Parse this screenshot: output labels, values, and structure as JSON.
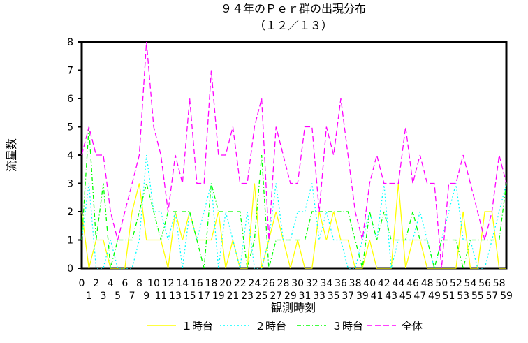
{
  "chart_data": {
    "type": "line",
    "title": "９４年のＰｅｒ群の出現分布",
    "subtitle": "（１２／１３）",
    "xlabel": "観測時刻",
    "ylabel": "流星数",
    "ylim": [
      0,
      8
    ],
    "xlim": [
      0,
      59
    ],
    "yticks": [
      0,
      1,
      2,
      3,
      4,
      5,
      6,
      7,
      8
    ],
    "xticks_top": [
      "0",
      "2",
      "4",
      "6",
      "8",
      "10",
      "12",
      "14",
      "16",
      "18",
      "20",
      "22",
      "24",
      "26",
      "28",
      "30",
      "32",
      "34",
      "36",
      "38",
      "40",
      "42",
      "44",
      "46",
      "48",
      "50",
      "52",
      "54",
      "56",
      "58"
    ],
    "xticks_bottom": [
      "1",
      "3",
      "5",
      "7",
      "9",
      "11",
      "13",
      "15",
      "17",
      "19",
      "21",
      "23",
      "25",
      "27",
      "29",
      "31",
      "33",
      "35",
      "37",
      "39",
      "41",
      "43",
      "45",
      "47",
      "49",
      "51",
      "53",
      "55",
      "57",
      "59"
    ],
    "grid": false,
    "legend_position": "bottom",
    "x": [
      0,
      1,
      2,
      3,
      4,
      5,
      6,
      7,
      8,
      9,
      10,
      11,
      12,
      13,
      14,
      15,
      16,
      17,
      18,
      19,
      20,
      21,
      22,
      23,
      24,
      25,
      26,
      27,
      28,
      29,
      30,
      31,
      32,
      33,
      34,
      35,
      36,
      37,
      38,
      39,
      40,
      41,
      42,
      43,
      44,
      45,
      46,
      47,
      48,
      49,
      50,
      51,
      52,
      53,
      54,
      55,
      56,
      57,
      58,
      59
    ],
    "series": [
      {
        "name": "１時台",
        "color": "#ffff00",
        "style": "solid",
        "values": [
          2,
          0,
          1,
          1,
          0,
          0,
          0,
          2,
          3,
          1,
          1,
          1,
          0,
          2,
          1,
          2,
          1,
          1,
          1,
          2,
          0,
          1,
          0,
          0,
          3,
          0,
          1,
          2,
          1,
          0,
          1,
          0,
          0,
          2,
          1,
          2,
          1,
          1,
          0,
          0,
          1,
          0,
          0,
          0,
          3,
          0,
          1,
          1,
          0,
          0,
          0,
          0,
          0,
          2,
          0,
          0,
          2,
          2,
          0,
          0
        ]
      },
      {
        "name": "２時台",
        "color": "#00ffff",
        "style": "dot",
        "values": [
          1,
          3,
          0,
          0,
          1,
          0,
          0,
          0,
          1,
          4,
          2,
          2,
          1,
          2,
          0,
          2,
          1,
          2,
          3,
          0,
          2,
          1,
          0,
          2,
          0,
          0,
          1,
          3,
          1,
          1,
          2,
          2,
          3,
          1,
          2,
          1,
          1,
          0,
          0,
          1,
          2,
          1,
          3,
          0,
          1,
          1,
          1,
          2,
          1,
          0,
          1,
          2,
          3,
          1,
          1,
          0,
          0,
          1,
          2,
          3
        ]
      },
      {
        "name": "３時台",
        "color": "#00ff00",
        "style": "dash-dot",
        "values": [
          1,
          5,
          1,
          3,
          0,
          1,
          1,
          1,
          2,
          3,
          2,
          1,
          2,
          2,
          2,
          2,
          1,
          0,
          3,
          2,
          2,
          2,
          2,
          0,
          1,
          4,
          0,
          1,
          1,
          1,
          1,
          1,
          2,
          2,
          2,
          2,
          2,
          2,
          1,
          0,
          2,
          1,
          2,
          1,
          1,
          1,
          2,
          1,
          1,
          0,
          1,
          1,
          1,
          0,
          1,
          1,
          1,
          1,
          1,
          3
        ]
      },
      {
        "name": "全体",
        "color": "#ff00ff",
        "style": "dash",
        "values": [
          4,
          5,
          4,
          4,
          2,
          1,
          2,
          3,
          4,
          8,
          5,
          4,
          2,
          4,
          3,
          6,
          3,
          3,
          7,
          4,
          4,
          5,
          3,
          3,
          5,
          6,
          1,
          5,
          4,
          3,
          3,
          5,
          5,
          2,
          5,
          4,
          6,
          4,
          2,
          1,
          3,
          4,
          3,
          3,
          3,
          5,
          3,
          4,
          3,
          3,
          0,
          3,
          3,
          4,
          3,
          2,
          1,
          2,
          4,
          3
        ]
      }
    ]
  }
}
